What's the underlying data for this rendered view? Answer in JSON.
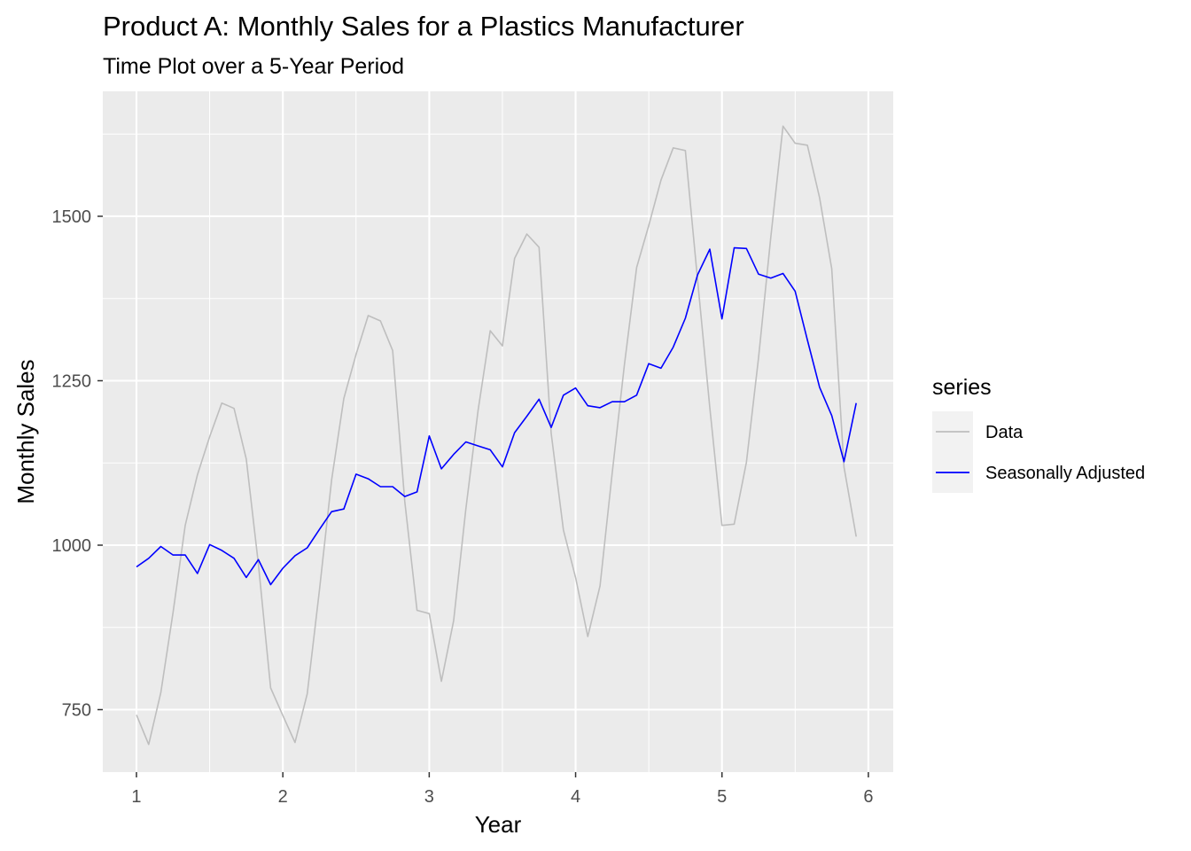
{
  "chart_data": {
    "type": "line",
    "title": "Product A: Monthly Sales for a Plastics Manufacturer",
    "subtitle": "Time Plot over a 5-Year Period",
    "xlabel": "Year",
    "ylabel": "Monthly Sales",
    "xlim": [
      0.77,
      6.17
    ],
    "ylim": [
      655,
      1690
    ],
    "xticks": [
      1,
      2,
      3,
      4,
      5,
      6
    ],
    "xtick_labels": [
      "1",
      "2",
      "3",
      "4",
      "5",
      "6"
    ],
    "yticks": [
      750,
      1000,
      1250,
      1500
    ],
    "ytick_labels": [
      "750",
      "1000",
      "1250",
      "1500"
    ],
    "grid": true,
    "legend": {
      "title": "series",
      "position": "right"
    },
    "x": [
      1.0,
      1.0833,
      1.1667,
      1.25,
      1.3333,
      1.4167,
      1.5,
      1.5833,
      1.6667,
      1.75,
      1.8333,
      1.9167,
      2.0,
      2.0833,
      2.1667,
      2.25,
      2.3333,
      2.4167,
      2.5,
      2.5833,
      2.6667,
      2.75,
      2.8333,
      2.9167,
      3.0,
      3.0833,
      3.1667,
      3.25,
      3.3333,
      3.4167,
      3.5,
      3.5833,
      3.6667,
      3.75,
      3.8333,
      3.9167,
      4.0,
      4.0833,
      4.1667,
      4.25,
      4.3333,
      4.4167,
      4.5,
      4.5833,
      4.6667,
      4.75,
      4.8333,
      4.9167,
      5.0,
      5.0833,
      5.1667,
      5.25,
      5.3333,
      5.4167,
      5.5,
      5.5833,
      5.6667,
      5.75,
      5.8333,
      5.9167
    ],
    "series": [
      {
        "name": "Data",
        "color": "#bebebe",
        "values": [
          742,
          697,
          776,
          898,
          1030,
          1107,
          1165,
          1216,
          1208,
          1131,
          971,
          783,
          741,
          700,
          774,
          932,
          1099,
          1223,
          1290,
          1349,
          1341,
          1296,
          1066,
          901,
          896,
          793,
          885,
          1055,
          1204,
          1326,
          1303,
          1436,
          1473,
          1453,
          1170,
          1023,
          951,
          861,
          938,
          1109,
          1274,
          1422,
          1486,
          1555,
          1604,
          1600,
          1403,
          1209,
          1030,
          1032,
          1126,
          1285,
          1468,
          1637,
          1611,
          1608,
          1528,
          1420,
          1119,
          1013
        ]
      },
      {
        "name": "Seasonally Adjusted",
        "color": "#0000ff",
        "values": [
          967,
          980,
          998,
          985,
          985,
          957,
          1001,
          992,
          980,
          951,
          978,
          940,
          965,
          984,
          996,
          1024,
          1051,
          1055,
          1108,
          1101,
          1089,
          1089,
          1074,
          1081,
          1166,
          1116,
          1138,
          1157,
          1151,
          1145,
          1119,
          1171,
          1196,
          1222,
          1179,
          1228,
          1239,
          1212,
          1209,
          1218,
          1218,
          1228,
          1276,
          1269,
          1301,
          1345,
          1411,
          1450,
          1344,
          1452,
          1451,
          1412,
          1406,
          1413,
          1386,
          1312,
          1240,
          1197,
          1127,
          1216
        ]
      }
    ]
  }
}
